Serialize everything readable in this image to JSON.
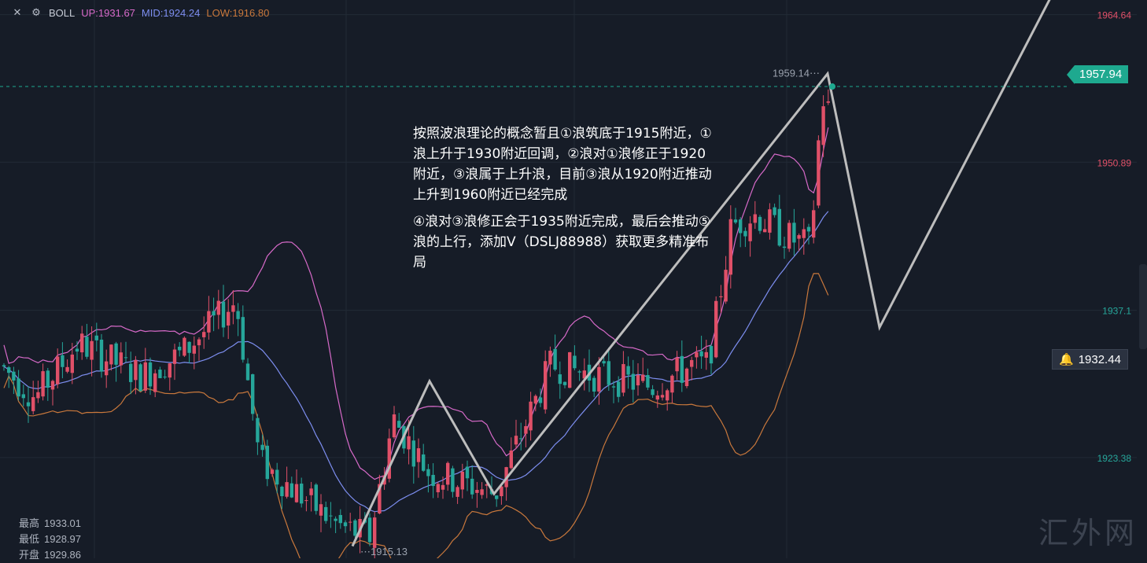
{
  "legend": {
    "indicator": "BOLL",
    "up": "UP:1931.67",
    "mid": "MID:1924.24",
    "low": "LOW:1916.80"
  },
  "annotation": {
    "para1": "按照波浪理论的概念暂且①浪筑底于1915附近，①浪上升于1930附近回调，②浪对①浪修正于1920附近，③浪属于上升浪，目前③浪从1920附近推动上升到1960附近已经完成",
    "para2": "④浪对③浪修正会于1935附近完成，最后会推动⑤浪的上行，添加V（DSLJ88988）获取更多精准布局"
  },
  "stats": {
    "high_label": "最高",
    "high": "1933.01",
    "low_label": "最低",
    "low": "1928.97",
    "open_label": "开盘",
    "open": "1929.86"
  },
  "price_tags": {
    "last": "1957.94",
    "alert": "1932.44",
    "peak": "1959.14",
    "trough": "1915.13"
  },
  "watermark": "汇外网",
  "colors": {
    "up": "#e05068",
    "down": "#26a69a",
    "boll_up": "#d76ac9",
    "boll_mid": "#7d8ef0",
    "boll_low": "#c9783c",
    "grid": "#222a36",
    "wave": "#bdbdbd"
  },
  "chart_data": {
    "type": "candlestick",
    "indicator": "BOLL",
    "y_axis_ticks": [
      "1964.64",
      "1950.89",
      "1937.1",
      "1923.38"
    ],
    "ylim": [
      1914,
      1966
    ],
    "candles": [],
    "wave_path": [
      {
        "label": "",
        "price": 1915.13
      },
      {
        "label": "",
        "price": 1930.5
      },
      {
        "label": "",
        "price": 1920.0
      },
      {
        "label": "",
        "price": 1959.14
      },
      {
        "label": "",
        "price": 1935.5
      },
      {
        "label": "",
        "price": 1968.0
      }
    ]
  }
}
